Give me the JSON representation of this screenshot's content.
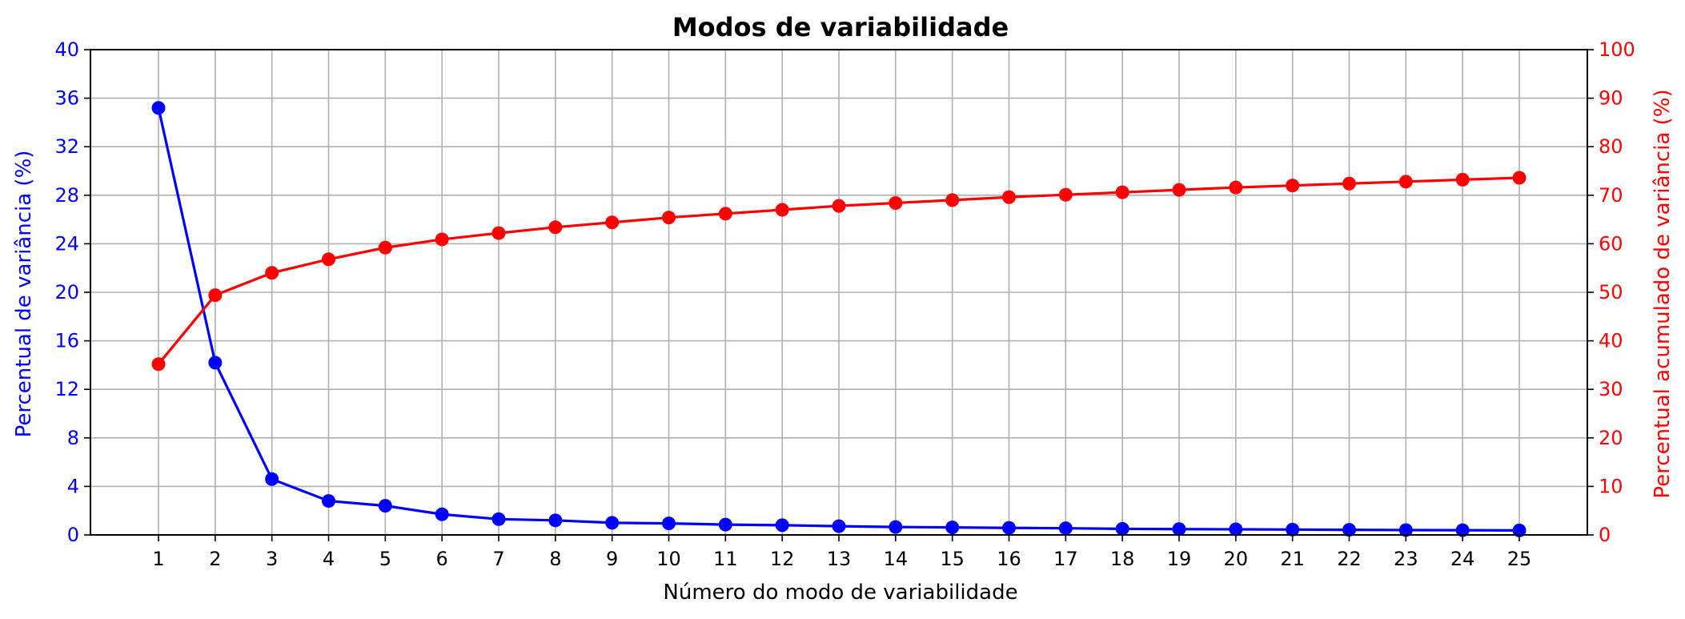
{
  "chart_data": {
    "type": "line",
    "title": "Modos de variabilidade",
    "xlabel": "Número do modo de variabilidade",
    "ylabel_left": "Percentual de variância (%)",
    "ylabel_right": "Percentual acumulado de variância (%)",
    "x": [
      1,
      2,
      3,
      4,
      5,
      6,
      7,
      8,
      9,
      10,
      11,
      12,
      13,
      14,
      15,
      16,
      17,
      18,
      19,
      20,
      21,
      22,
      23,
      24,
      25
    ],
    "ylim_left": [
      0,
      40
    ],
    "yticks_left": [
      0,
      4,
      8,
      12,
      16,
      20,
      24,
      28,
      32,
      36,
      40
    ],
    "ylim_right": [
      0,
      100
    ],
    "yticks_right": [
      0,
      10,
      20,
      30,
      40,
      50,
      60,
      70,
      80,
      90,
      100
    ],
    "grid": true,
    "series": [
      {
        "axis": "left",
        "color": "#0000ff",
        "marker": "circle",
        "values": [
          35.2,
          14.2,
          4.6,
          2.8,
          2.4,
          1.7,
          1.3,
          1.2,
          1.0,
          0.95,
          0.85,
          0.8,
          0.72,
          0.65,
          0.62,
          0.58,
          0.55,
          0.5,
          0.48,
          0.46,
          0.44,
          0.42,
          0.4,
          0.39,
          0.37
        ]
      },
      {
        "axis": "right",
        "color": "#ff0000",
        "marker": "circle",
        "values": [
          35.2,
          49.4,
          54.0,
          56.8,
          59.2,
          60.9,
          62.2,
          63.4,
          64.4,
          65.4,
          66.2,
          67.0,
          67.8,
          68.4,
          69.0,
          69.6,
          70.1,
          70.6,
          71.1,
          71.6,
          72.0,
          72.4,
          72.8,
          73.2,
          73.6
        ]
      }
    ]
  }
}
